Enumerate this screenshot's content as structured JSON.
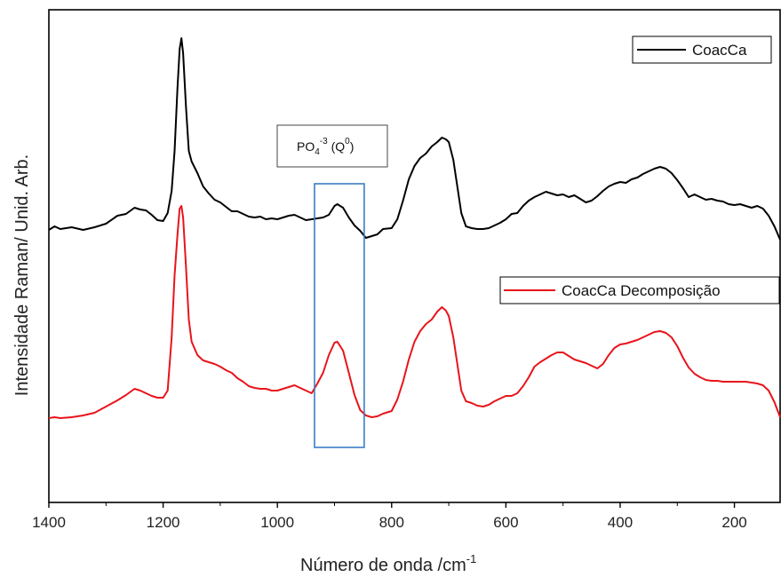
{
  "chart_data": {
    "type": "line",
    "title": "",
    "xlabel": "Número de onda /cm",
    "xlabel_sup": "-1",
    "ylabel": "Intensidade Raman/ Unid. Arb.",
    "xlim": [
      1400,
      120
    ],
    "x_reversed": true,
    "x_ticks": [
      "1400",
      "1200",
      "1000",
      "800",
      "600",
      "400",
      "200"
    ],
    "y_ticks_labeled": false,
    "legend_position": "right",
    "annotation": {
      "text_main": "PO",
      "text_sub": "4",
      "text_sup": "-3",
      "text_tail": " (Q",
      "text_tail_sup": "0",
      "text_end": ")",
      "box_x_range": [
        935,
        848
      ]
    },
    "series": [
      {
        "name": "CoacCa",
        "color": "#000000",
        "points": [
          [
            1400,
            259
          ],
          [
            1390,
            255
          ],
          [
            1380,
            258
          ],
          [
            1360,
            256
          ],
          [
            1340,
            259
          ],
          [
            1320,
            256
          ],
          [
            1300,
            252
          ],
          [
            1280,
            243
          ],
          [
            1265,
            241
          ],
          [
            1250,
            234
          ],
          [
            1240,
            236
          ],
          [
            1230,
            237
          ],
          [
            1220,
            242
          ],
          [
            1210,
            248
          ],
          [
            1200,
            249
          ],
          [
            1192,
            240
          ],
          [
            1185,
            215
          ],
          [
            1180,
            170
          ],
          [
            1175,
            100
          ],
          [
            1171,
            55
          ],
          [
            1168,
            43
          ],
          [
            1165,
            60
          ],
          [
            1160,
            120
          ],
          [
            1155,
            170
          ],
          [
            1150,
            182
          ],
          [
            1140,
            195
          ],
          [
            1130,
            210
          ],
          [
            1120,
            218
          ],
          [
            1110,
            225
          ],
          [
            1100,
            228
          ],
          [
            1090,
            233
          ],
          [
            1080,
            238
          ],
          [
            1070,
            238
          ],
          [
            1060,
            241
          ],
          [
            1050,
            244
          ],
          [
            1040,
            245
          ],
          [
            1030,
            244
          ],
          [
            1020,
            247
          ],
          [
            1010,
            246
          ],
          [
            1000,
            247
          ],
          [
            990,
            245
          ],
          [
            980,
            243
          ],
          [
            970,
            242
          ],
          [
            960,
            245
          ],
          [
            950,
            248
          ],
          [
            940,
            247
          ],
          [
            930,
            246
          ],
          [
            920,
            245
          ],
          [
            910,
            242
          ],
          [
            900,
            232
          ],
          [
            895,
            230
          ],
          [
            885,
            234
          ],
          [
            875,
            245
          ],
          [
            865,
            254
          ],
          [
            855,
            260
          ],
          [
            845,
            268
          ],
          [
            835,
            266
          ],
          [
            825,
            264
          ],
          [
            815,
            258
          ],
          [
            800,
            257
          ],
          [
            790,
            247
          ],
          [
            780,
            226
          ],
          [
            770,
            202
          ],
          [
            760,
            187
          ],
          [
            750,
            178
          ],
          [
            740,
            173
          ],
          [
            730,
            165
          ],
          [
            720,
            160
          ],
          [
            712,
            155
          ],
          [
            705,
            157
          ],
          [
            700,
            160
          ],
          [
            692,
            180
          ],
          [
            685,
            210
          ],
          [
            678,
            240
          ],
          [
            670,
            255
          ],
          [
            660,
            257
          ],
          [
            650,
            258
          ],
          [
            640,
            258
          ],
          [
            630,
            257
          ],
          [
            620,
            254
          ],
          [
            610,
            251
          ],
          [
            600,
            247
          ],
          [
            590,
            241
          ],
          [
            580,
            240
          ],
          [
            570,
            232
          ],
          [
            560,
            226
          ],
          [
            550,
            222
          ],
          [
            540,
            219
          ],
          [
            530,
            216
          ],
          [
            520,
            218
          ],
          [
            510,
            220
          ],
          [
            500,
            219
          ],
          [
            490,
            222
          ],
          [
            480,
            220
          ],
          [
            470,
            224
          ],
          [
            460,
            228
          ],
          [
            450,
            226
          ],
          [
            440,
            221
          ],
          [
            430,
            215
          ],
          [
            420,
            210
          ],
          [
            410,
            207
          ],
          [
            400,
            205
          ],
          [
            390,
            206
          ],
          [
            380,
            202
          ],
          [
            370,
            200
          ],
          [
            360,
            196
          ],
          [
            350,
            193
          ],
          [
            340,
            190
          ],
          [
            330,
            188
          ],
          [
            320,
            190
          ],
          [
            310,
            195
          ],
          [
            300,
            203
          ],
          [
            290,
            212
          ],
          [
            280,
            222
          ],
          [
            270,
            219
          ],
          [
            260,
            222
          ],
          [
            250,
            225
          ],
          [
            240,
            224
          ],
          [
            230,
            226
          ],
          [
            220,
            227
          ],
          [
            210,
            230
          ],
          [
            200,
            231
          ],
          [
            190,
            230
          ],
          [
            180,
            232
          ],
          [
            170,
            234
          ],
          [
            160,
            232
          ],
          [
            150,
            235
          ],
          [
            140,
            243
          ],
          [
            130,
            255
          ],
          [
            120,
            270
          ]
        ]
      },
      {
        "name": "CoacCa Decomposição",
        "color": "#e8141b",
        "points": [
          [
            1400,
            471
          ],
          [
            1390,
            470
          ],
          [
            1380,
            471
          ],
          [
            1360,
            470
          ],
          [
            1340,
            468
          ],
          [
            1320,
            465
          ],
          [
            1300,
            458
          ],
          [
            1280,
            451
          ],
          [
            1265,
            445
          ],
          [
            1250,
            438
          ],
          [
            1240,
            440
          ],
          [
            1230,
            443
          ],
          [
            1220,
            446
          ],
          [
            1210,
            448
          ],
          [
            1200,
            448
          ],
          [
            1192,
            440
          ],
          [
            1185,
            380
          ],
          [
            1180,
            310
          ],
          [
            1175,
            265
          ],
          [
            1171,
            235
          ],
          [
            1168,
            232
          ],
          [
            1165,
            245
          ],
          [
            1160,
            300
          ],
          [
            1155,
            360
          ],
          [
            1150,
            385
          ],
          [
            1140,
            400
          ],
          [
            1130,
            406
          ],
          [
            1120,
            408
          ],
          [
            1110,
            410
          ],
          [
            1100,
            413
          ],
          [
            1090,
            417
          ],
          [
            1080,
            420
          ],
          [
            1070,
            426
          ],
          [
            1060,
            430
          ],
          [
            1050,
            435
          ],
          [
            1040,
            437
          ],
          [
            1030,
            438
          ],
          [
            1020,
            438
          ],
          [
            1010,
            440
          ],
          [
            1000,
            440
          ],
          [
            990,
            438
          ],
          [
            980,
            436
          ],
          [
            970,
            434
          ],
          [
            960,
            437
          ],
          [
            950,
            440
          ],
          [
            940,
            443
          ],
          [
            930,
            432
          ],
          [
            920,
            420
          ],
          [
            910,
            400
          ],
          [
            900,
            386
          ],
          [
            895,
            385
          ],
          [
            885,
            395
          ],
          [
            875,
            420
          ],
          [
            865,
            445
          ],
          [
            855,
            462
          ],
          [
            845,
            468
          ],
          [
            835,
            470
          ],
          [
            825,
            469
          ],
          [
            815,
            466
          ],
          [
            800,
            463
          ],
          [
            790,
            450
          ],
          [
            780,
            430
          ],
          [
            770,
            405
          ],
          [
            760,
            385
          ],
          [
            750,
            373
          ],
          [
            740,
            365
          ],
          [
            730,
            360
          ],
          [
            720,
            351
          ],
          [
            712,
            346
          ],
          [
            705,
            350
          ],
          [
            700,
            356
          ],
          [
            692,
            380
          ],
          [
            685,
            410
          ],
          [
            678,
            440
          ],
          [
            670,
            452
          ],
          [
            660,
            454
          ],
          [
            650,
            457
          ],
          [
            640,
            458
          ],
          [
            630,
            456
          ],
          [
            620,
            452
          ],
          [
            610,
            449
          ],
          [
            600,
            446
          ],
          [
            590,
            446
          ],
          [
            580,
            443
          ],
          [
            570,
            435
          ],
          [
            560,
            425
          ],
          [
            550,
            413
          ],
          [
            540,
            408
          ],
          [
            530,
            404
          ],
          [
            520,
            400
          ],
          [
            510,
            397
          ],
          [
            500,
            397
          ],
          [
            490,
            401
          ],
          [
            480,
            405
          ],
          [
            470,
            407
          ],
          [
            460,
            409
          ],
          [
            450,
            412
          ],
          [
            440,
            415
          ],
          [
            430,
            410
          ],
          [
            420,
            400
          ],
          [
            410,
            392
          ],
          [
            400,
            388
          ],
          [
            390,
            387
          ],
          [
            380,
            385
          ],
          [
            370,
            383
          ],
          [
            360,
            380
          ],
          [
            350,
            377
          ],
          [
            340,
            374
          ],
          [
            330,
            373
          ],
          [
            320,
            375
          ],
          [
            310,
            380
          ],
          [
            300,
            390
          ],
          [
            290,
            403
          ],
          [
            280,
            414
          ],
          [
            270,
            421
          ],
          [
            260,
            425
          ],
          [
            250,
            428
          ],
          [
            240,
            429
          ],
          [
            230,
            429
          ],
          [
            220,
            430
          ],
          [
            210,
            430
          ],
          [
            200,
            430
          ],
          [
            190,
            430
          ],
          [
            180,
            430
          ],
          [
            170,
            431
          ],
          [
            160,
            432
          ],
          [
            150,
            434
          ],
          [
            140,
            440
          ],
          [
            130,
            453
          ],
          [
            120,
            470
          ]
        ]
      }
    ]
  }
}
